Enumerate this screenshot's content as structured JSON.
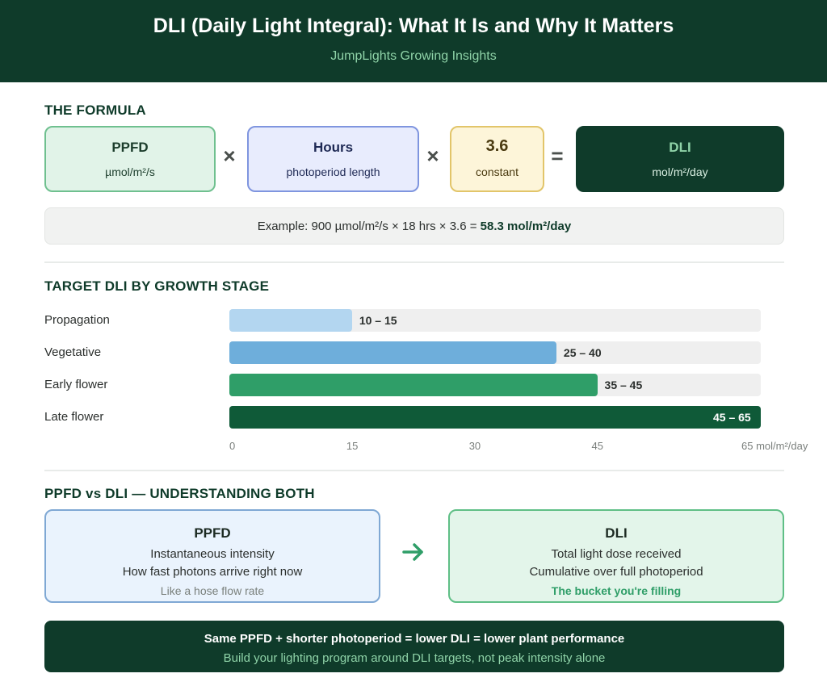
{
  "header": {
    "title": "DLI (Daily Light Integral): What It Is and Why It Matters",
    "subtitle": "JumpLights Growing Insights"
  },
  "formula": {
    "section_title": "THE FORMULA",
    "ppfd": {
      "main": "PPFD",
      "sub": "µmol/m²/s"
    },
    "hours": {
      "main": "Hours",
      "sub": "photoperiod length"
    },
    "constant": {
      "main": "3.6",
      "sub": "constant"
    },
    "dli": {
      "main": "DLI",
      "sub": "mol/m²/day"
    },
    "times_symbol": "×",
    "equals_symbol": "=",
    "example_prefix": "Example: 900 µmol/m²/s × 18 hrs × 3.6 = ",
    "example_result": "58.3 mol/m²/day",
    "colors": {
      "ppfd_bg": "#e1f3e8",
      "ppfd_border": "#6fc08f",
      "hours_bg": "#e8ecfd",
      "hours_border": "#7f95df",
      "constant_bg": "#fdf5d9",
      "constant_border": "#e2c56a",
      "dli_bg": "#0f3b2a"
    }
  },
  "target": {
    "section_title": "TARGET DLI BY GROWTH STAGE"
  },
  "chart_data": {
    "type": "bar",
    "orientation": "horizontal",
    "categories": [
      "Propagation",
      "Vegetative",
      "Early flower",
      "Late flower"
    ],
    "values": [
      15,
      40,
      45,
      65
    ],
    "ranges": [
      [
        10,
        15
      ],
      [
        25,
        40
      ],
      [
        35,
        45
      ],
      [
        45,
        65
      ]
    ],
    "value_labels": [
      "10 – 15",
      "25 – 40",
      "35 – 45",
      "45 – 65"
    ],
    "xlim": [
      0,
      65
    ],
    "x_ticks": [
      "0",
      "15",
      "30",
      "45",
      "65 mol/m²/day"
    ],
    "x_tick_values": [
      0,
      15,
      30,
      45,
      65
    ],
    "bar_colors": [
      "#b3d6f0",
      "#6eaedb",
      "#2f9e68",
      "#0f5a38"
    ],
    "label_colors": [
      "#2b2f2d",
      "#2b2f2d",
      "#2b2f2d",
      "#ffffff"
    ],
    "grid": false
  },
  "compare": {
    "section_title": "PPFD vs DLI — UNDERSTANDING BOTH",
    "ppfd": {
      "title": "PPFD",
      "line1": "Instantaneous intensity",
      "line2": "How fast photons arrive right now",
      "line3": "Like a hose flow rate"
    },
    "dli": {
      "title": "DLI",
      "line1": "Total light dose received",
      "line2": "Cumulative over full photoperiod",
      "line3": "The bucket you're filling"
    },
    "arrow_icon": "arrow-right-icon"
  },
  "footer": {
    "line1": "Same PPFD + shorter photoperiod = lower DLI = lower plant performance",
    "line2": "Build your lighting program around DLI targets, not peak intensity alone"
  }
}
